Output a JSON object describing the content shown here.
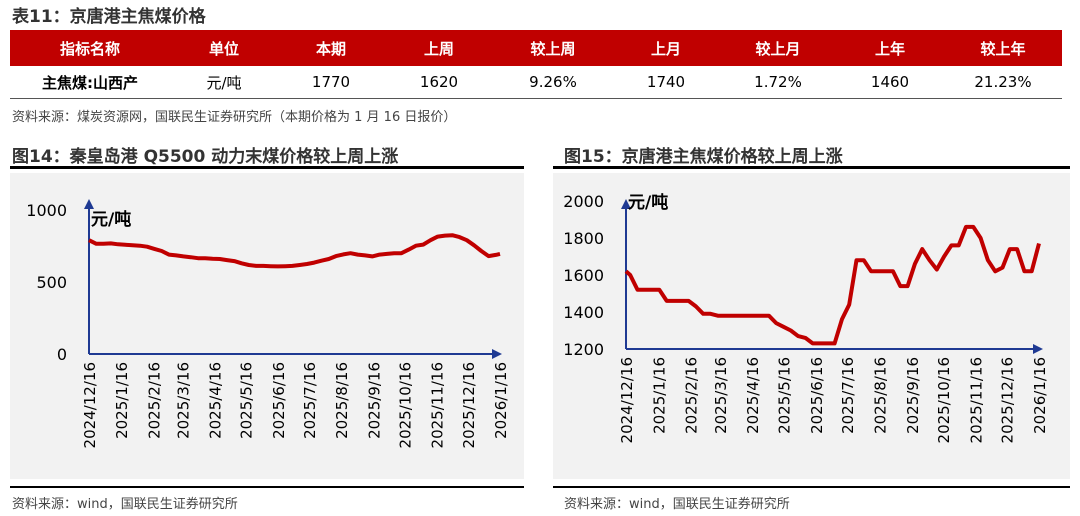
{
  "table": {
    "title": "表11：京唐港主焦煤价格",
    "headers": [
      "指标名称",
      "单位",
      "本期",
      "上周",
      "较上周",
      "上月",
      "较上月",
      "上年",
      "较上年"
    ],
    "row": [
      "主焦煤:山西产",
      "元/吨",
      "1770",
      "1620",
      "9.26%",
      "1740",
      "1.72%",
      "1460",
      "21.23%"
    ],
    "source": "资料来源：煤炭资源网，国联民生证券研究所（本期价格为 1 月 16 日报价）"
  },
  "fig14": {
    "title": "图14：秦皇岛港 Q5500 动力末煤价格较上周上涨",
    "source": "资料来源：wind，国联民生证券研究所"
  },
  "fig15": {
    "title": "图15：京唐港主焦煤价格较上周上涨",
    "source": "资料来源：wind，国联民生证券研究所"
  },
  "colors": {
    "accent": "#c00000",
    "axis": "#1f3a93",
    "line": "#c00000"
  },
  "chart_data": [
    {
      "type": "line",
      "title": "",
      "unit_label": "元/吨",
      "ylim": [
        0,
        1000
      ],
      "yticks": [
        0,
        500,
        1000
      ],
      "xticks": [
        "2024/12/16",
        "2025/1/16",
        "2025/2/16",
        "2025/3/16",
        "2025/4/16",
        "2025/5/16",
        "2025/6/16",
        "2025/7/16",
        "2025/8/16",
        "2025/9/16",
        "2025/10/16",
        "2025/11/16",
        "2025/12/16",
        "2026/1/16"
      ],
      "series": [
        {
          "name": "",
          "x": [
            "2024-12-16",
            "2024-12-23",
            "2024-12-30",
            "2025-01-06",
            "2025-01-13",
            "2025-01-20",
            "2025-01-27",
            "2025-02-03",
            "2025-02-10",
            "2025-02-17",
            "2025-02-24",
            "2025-03-03",
            "2025-03-10",
            "2025-03-17",
            "2025-03-24",
            "2025-03-31",
            "2025-04-07",
            "2025-04-14",
            "2025-04-21",
            "2025-04-28",
            "2025-05-05",
            "2025-05-12",
            "2025-05-19",
            "2025-05-26",
            "2025-06-02",
            "2025-06-09",
            "2025-06-16",
            "2025-06-23",
            "2025-06-30",
            "2025-07-07",
            "2025-07-14",
            "2025-07-21",
            "2025-07-28",
            "2025-08-04",
            "2025-08-11",
            "2025-08-18",
            "2025-08-25",
            "2025-09-01",
            "2025-09-08",
            "2025-09-15",
            "2025-09-22",
            "2025-09-29",
            "2025-10-06",
            "2025-10-13",
            "2025-10-20",
            "2025-10-27",
            "2025-11-03",
            "2025-11-10",
            "2025-11-17",
            "2025-11-24",
            "2025-12-01",
            "2025-12-08",
            "2025-12-15",
            "2025-12-22",
            "2025-12-29",
            "2026-01-05",
            "2026-01-12",
            "2026-01-16"
          ],
          "values": [
            790,
            765,
            765,
            768,
            762,
            758,
            755,
            752,
            745,
            730,
            715,
            690,
            685,
            678,
            672,
            665,
            665,
            662,
            660,
            652,
            645,
            630,
            618,
            612,
            612,
            610,
            608,
            610,
            612,
            618,
            625,
            635,
            648,
            660,
            680,
            692,
            700,
            690,
            685,
            678,
            690,
            695,
            700,
            700,
            725,
            752,
            760,
            790,
            815,
            822,
            825,
            812,
            790,
            755,
            715,
            680,
            688,
            695
          ]
        }
      ]
    },
    {
      "type": "line",
      "title": "",
      "unit_label": "元/吨",
      "ylim": [
        1200,
        2000
      ],
      "yticks": [
        1200,
        1400,
        1600,
        1800,
        2000
      ],
      "xticks": [
        "2024/12/16",
        "2025/1/16",
        "2025/2/16",
        "2025/3/16",
        "2025/4/16",
        "2025/5/16",
        "2025/6/16",
        "2025/7/16",
        "2025/8/16",
        "2025/9/16",
        "2025/10/16",
        "2025/11/16",
        "2025/12/16",
        "2026/1/16"
      ],
      "series": [
        {
          "name": "",
          "x": [
            "2024-12-16",
            "2024-12-20",
            "2024-12-27",
            "2025-01-03",
            "2025-01-10",
            "2025-01-17",
            "2025-01-24",
            "2025-01-31",
            "2025-02-07",
            "2025-02-14",
            "2025-02-21",
            "2025-02-28",
            "2025-03-07",
            "2025-03-14",
            "2025-03-21",
            "2025-03-28",
            "2025-04-04",
            "2025-04-11",
            "2025-04-18",
            "2025-04-25",
            "2025-05-02",
            "2025-05-09",
            "2025-05-16",
            "2025-05-23",
            "2025-05-30",
            "2025-06-06",
            "2025-06-13",
            "2025-06-20",
            "2025-06-27",
            "2025-07-04",
            "2025-07-11",
            "2025-07-18",
            "2025-07-25",
            "2025-08-01",
            "2025-08-08",
            "2025-08-15",
            "2025-08-22",
            "2025-08-29",
            "2025-09-05",
            "2025-09-12",
            "2025-09-19",
            "2025-09-26",
            "2025-10-03",
            "2025-10-10",
            "2025-10-17",
            "2025-10-24",
            "2025-10-31",
            "2025-11-07",
            "2025-11-14",
            "2025-11-21",
            "2025-11-28",
            "2025-12-05",
            "2025-12-12",
            "2025-12-19",
            "2025-12-26",
            "2026-01-02",
            "2026-01-09",
            "2026-01-16"
          ],
          "values": [
            1620,
            1600,
            1520,
            1520,
            1520,
            1520,
            1460,
            1460,
            1460,
            1460,
            1430,
            1390,
            1390,
            1380,
            1380,
            1380,
            1380,
            1380,
            1380,
            1380,
            1380,
            1340,
            1320,
            1300,
            1270,
            1260,
            1230,
            1230,
            1230,
            1230,
            1360,
            1440,
            1680,
            1680,
            1620,
            1620,
            1620,
            1620,
            1540,
            1540,
            1660,
            1740,
            1680,
            1630,
            1700,
            1760,
            1760,
            1860,
            1860,
            1800,
            1680,
            1620,
            1640,
            1740,
            1740,
            1620,
            1620,
            1770
          ]
        }
      ]
    }
  ]
}
